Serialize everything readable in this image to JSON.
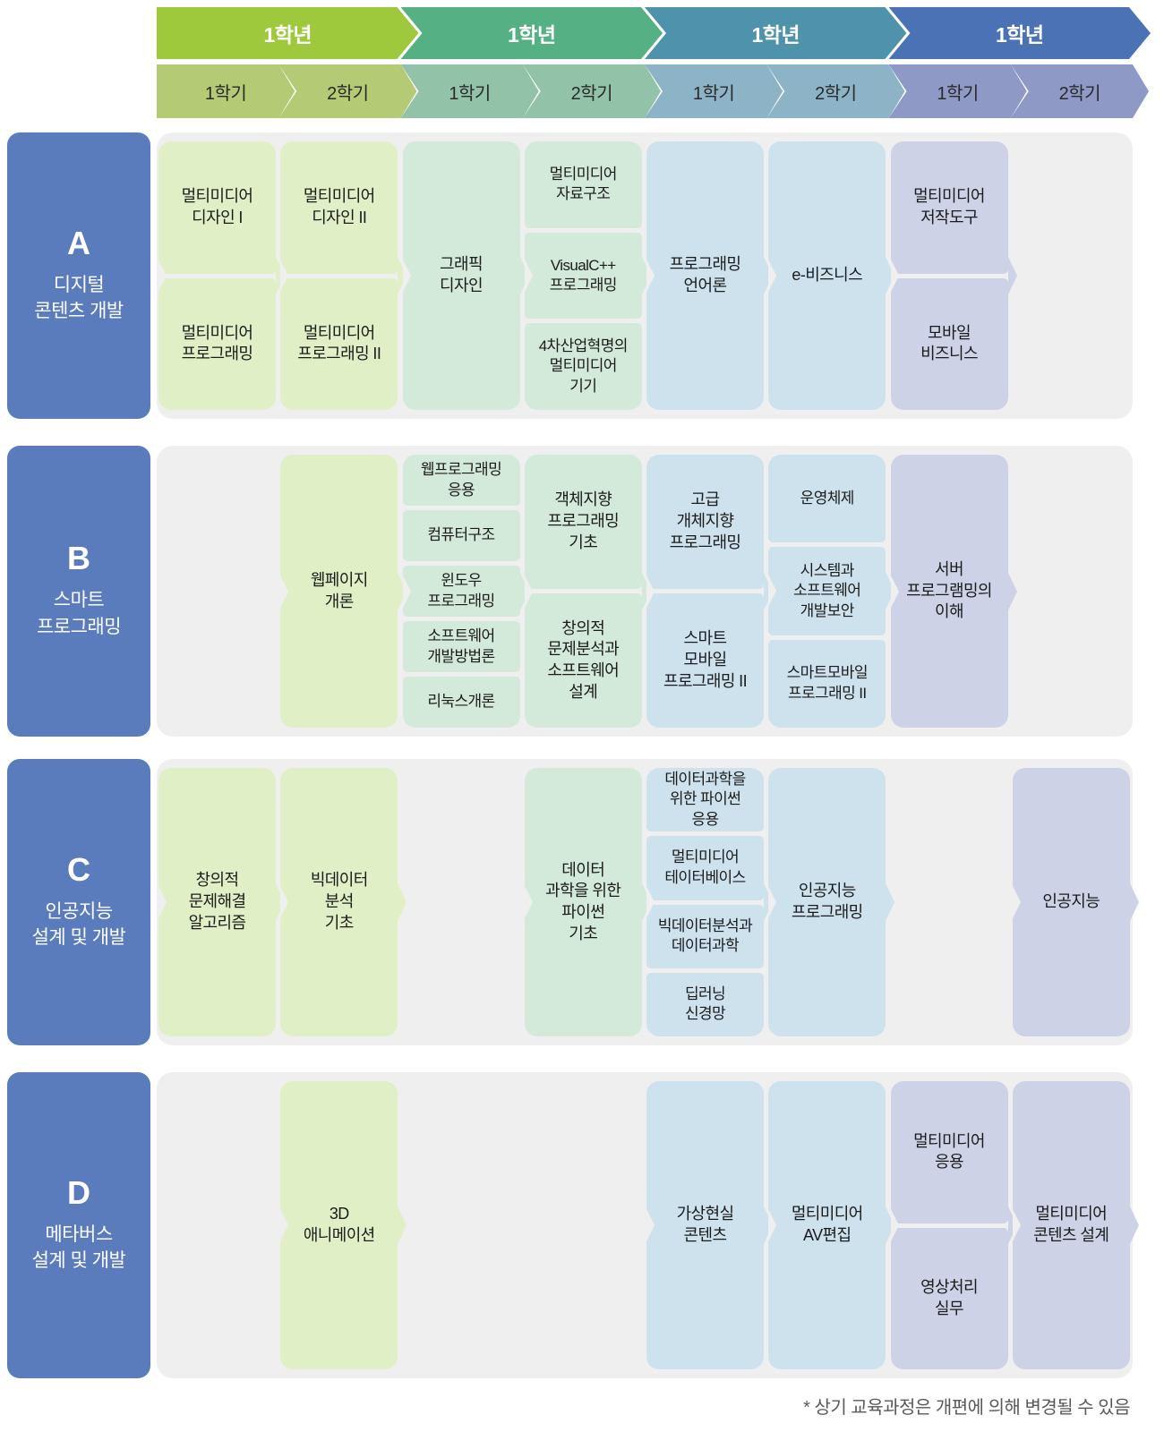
{
  "palette": {
    "banner": [
      "#9fc93c",
      "#55b183",
      "#4e92ab",
      "#4a72b5"
    ],
    "semester": [
      "#b4ca74",
      "#92c2a8",
      "#8db4c6",
      "#8e99c6"
    ],
    "card": [
      "#e0efc5",
      "#d3e9d9",
      "#cde2ec",
      "#cdd2e7"
    ],
    "track_bg": "#f0eff0",
    "label_bg": "#5a7cbc"
  },
  "header": {
    "years": [
      {
        "label": "1학년",
        "semesters": [
          "1학기",
          "2학기"
        ]
      },
      {
        "label": "1학년",
        "semesters": [
          "1학기",
          "2학기"
        ]
      },
      {
        "label": "1학년",
        "semesters": [
          "1학기",
          "2학기"
        ]
      },
      {
        "label": "1학년",
        "semesters": [
          "1학기",
          "2학기"
        ]
      }
    ]
  },
  "tracks": [
    {
      "letter": "A",
      "name": "디지털\n콘텐츠 개발",
      "cells": [
        {
          "col": 0,
          "cards": [
            "멀티미디어\n디자인 I",
            "멀티미디어\n프로그래밍"
          ]
        },
        {
          "col": 1,
          "cards": [
            "멀티미디어\n디자인 II",
            "멀티미디어\n프로그래밍 II"
          ]
        },
        {
          "col": 2,
          "cards": [
            "그래픽\n디자인"
          ]
        },
        {
          "col": 3,
          "cards": [
            "멀티미디어\n자료구조",
            "VisualC++\n프로그래밍",
            "4차산업혁명의\n멀티미디어\n기기"
          ]
        },
        {
          "col": 4,
          "cards": [
            "프로그래밍\n언어론"
          ]
        },
        {
          "col": 5,
          "cards": [
            "e-비즈니스"
          ]
        },
        {
          "col": 6,
          "cards": [
            "멀티미디어\n저작도구",
            "모바일\n비즈니스"
          ]
        }
      ]
    },
    {
      "letter": "B",
      "name": "스마트\n프로그래밍",
      "cells": [
        {
          "col": 1,
          "cards": [
            "웹페이지\n개론"
          ]
        },
        {
          "col": 2,
          "cards": [
            "웹프로그래밍\n응용",
            "컴퓨터구조",
            "윈도우\n프로그래밍",
            "소프트웨어\n개발방법론",
            "리눅스개론"
          ]
        },
        {
          "col": 3,
          "cards": [
            "객체지향\n프로그래밍\n기초",
            "창의적\n문제분석과\n소프트웨어\n설계"
          ]
        },
        {
          "col": 4,
          "cards": [
            "고급\n개체지향\n프로그래밍",
            "스마트\n모바일\n프로그래밍 II"
          ]
        },
        {
          "col": 5,
          "cards": [
            "운영체제",
            "시스템과\n소프트웨어\n개발보안",
            "스마트모바일\n프로그래밍 II"
          ]
        },
        {
          "col": 6,
          "cards": [
            "서버\n프로그램밍의\n이해"
          ]
        }
      ]
    },
    {
      "letter": "C",
      "name": "인공지능\n설계 및 개발",
      "cells": [
        {
          "col": 0,
          "cards": [
            "창의적\n문제해결\n알고리즘"
          ]
        },
        {
          "col": 1,
          "cards": [
            "빅데이터\n분석\n기초"
          ]
        },
        {
          "col": 3,
          "cards": [
            "데이터\n과학을 위한\n파이썬\n기초"
          ]
        },
        {
          "col": 4,
          "cards": [
            "데이터과학을\n위한 파이썬\n응용",
            "멀티미디어\n테이터베이스",
            "빅데이터분석과\n데이터과학",
            "딥러닝\n신경망"
          ]
        },
        {
          "col": 5,
          "cards": [
            "인공지능\n프로그래밍"
          ]
        },
        {
          "col": 7,
          "cards": [
            "인공지능"
          ]
        }
      ]
    },
    {
      "letter": "D",
      "name": "메타버스\n설계 및 개발",
      "cells": [
        {
          "col": 1,
          "cards": [
            "3D\n애니메이션"
          ]
        },
        {
          "col": 4,
          "cards": [
            "가상현실\n콘텐츠"
          ]
        },
        {
          "col": 5,
          "cards": [
            "멀티미디어\nAV편집"
          ]
        },
        {
          "col": 6,
          "cards": [
            "멀티미디어\n응용",
            "영상처리\n실무"
          ]
        },
        {
          "col": 7,
          "cards": [
            "멀티미디어\n콘텐츠 설계"
          ]
        }
      ]
    }
  ],
  "footnote": "* 상기 교육과정은 개편에 의해 변경될 수 있음"
}
